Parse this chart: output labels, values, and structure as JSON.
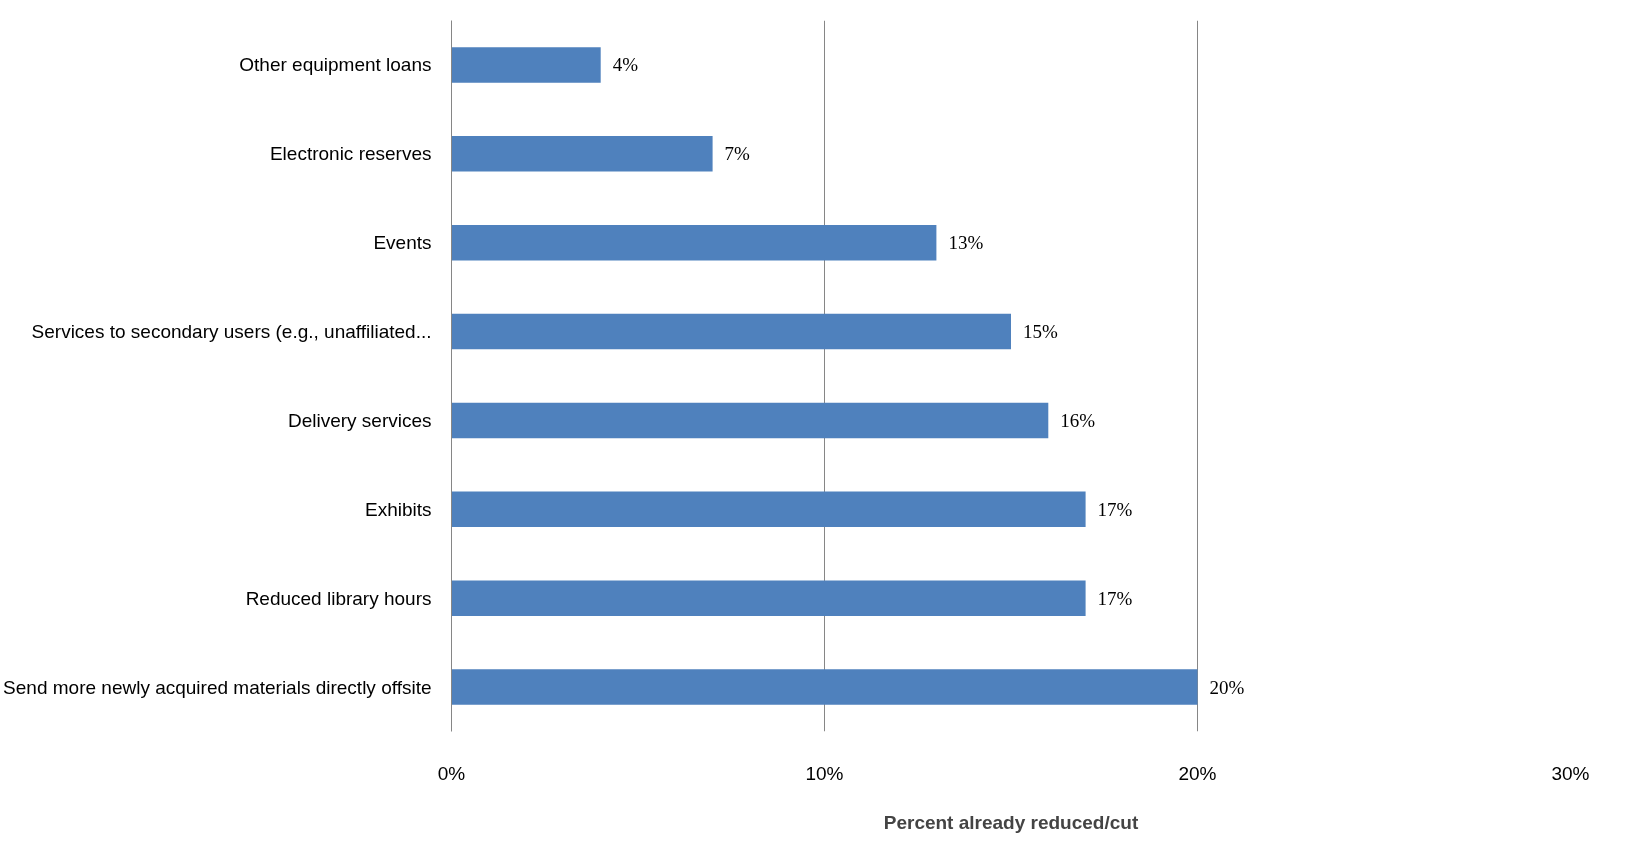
{
  "chart_data": {
    "type": "bar",
    "orientation": "horizontal",
    "categories": [
      "Other equipment loans",
      "Electronic reserves",
      "Events",
      "Services to secondary users (e.g., unaffiliated...",
      "Delivery services",
      "Exhibits",
      "Reduced library hours",
      "Send more newly acquired materials directly offsite"
    ],
    "values": [
      4,
      7,
      13,
      15,
      16,
      17,
      17,
      20
    ],
    "value_labels": [
      "4%",
      "7%",
      "13%",
      "15%",
      "16%",
      "17%",
      "17%",
      "20%"
    ],
    "color": "#4f81bd",
    "xlabel": "Percent already reduced/cut",
    "xlim": [
      0,
      30
    ],
    "xticks": [
      {
        "value": 0,
        "label": "0%"
      },
      {
        "value": 10,
        "label": "10%"
      },
      {
        "value": 20,
        "label": "20%"
      },
      {
        "value": 30,
        "label": "30%"
      }
    ],
    "grid": "x"
  }
}
